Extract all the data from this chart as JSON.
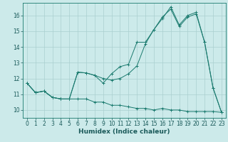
{
  "title": "",
  "xlabel": "Humidex (Indice chaleur)",
  "background_color": "#cceaea",
  "line_color": "#1a7a6e",
  "grid_color": "#aacfcf",
  "x_values": [
    0,
    1,
    2,
    3,
    4,
    5,
    6,
    7,
    8,
    9,
    10,
    11,
    12,
    13,
    14,
    15,
    16,
    17,
    18,
    19,
    20,
    21,
    22,
    23
  ],
  "y_line1": [
    11.7,
    11.1,
    11.2,
    10.8,
    10.7,
    10.7,
    10.7,
    10.7,
    10.5,
    10.5,
    10.3,
    10.3,
    10.2,
    10.1,
    10.1,
    10.0,
    10.1,
    10.0,
    10.0,
    9.9,
    9.9,
    9.9,
    9.9,
    9.85
  ],
  "y_line2": [
    11.7,
    11.1,
    11.2,
    10.8,
    10.7,
    10.7,
    12.4,
    12.35,
    12.2,
    12.0,
    11.9,
    12.0,
    12.3,
    12.8,
    14.2,
    15.1,
    15.9,
    16.4,
    15.3,
    15.9,
    16.1,
    14.3,
    11.4,
    9.85
  ],
  "y_line3": [
    11.7,
    11.1,
    11.2,
    10.8,
    10.7,
    10.7,
    12.4,
    12.35,
    12.2,
    11.7,
    12.3,
    12.75,
    12.9,
    14.3,
    14.3,
    15.1,
    15.8,
    16.55,
    15.4,
    16.0,
    16.2,
    14.3,
    11.4,
    9.85
  ],
  "ylim": [
    9.5,
    16.8
  ],
  "yticks": [
    10,
    11,
    12,
    13,
    14,
    15,
    16
  ],
  "xlim": [
    -0.5,
    23.5
  ],
  "xticks": [
    0,
    1,
    2,
    3,
    4,
    5,
    6,
    7,
    8,
    9,
    10,
    11,
    12,
    13,
    14,
    15,
    16,
    17,
    18,
    19,
    20,
    21,
    22,
    23
  ],
  "tick_fontsize": 5.5,
  "xlabel_fontsize": 6.5
}
